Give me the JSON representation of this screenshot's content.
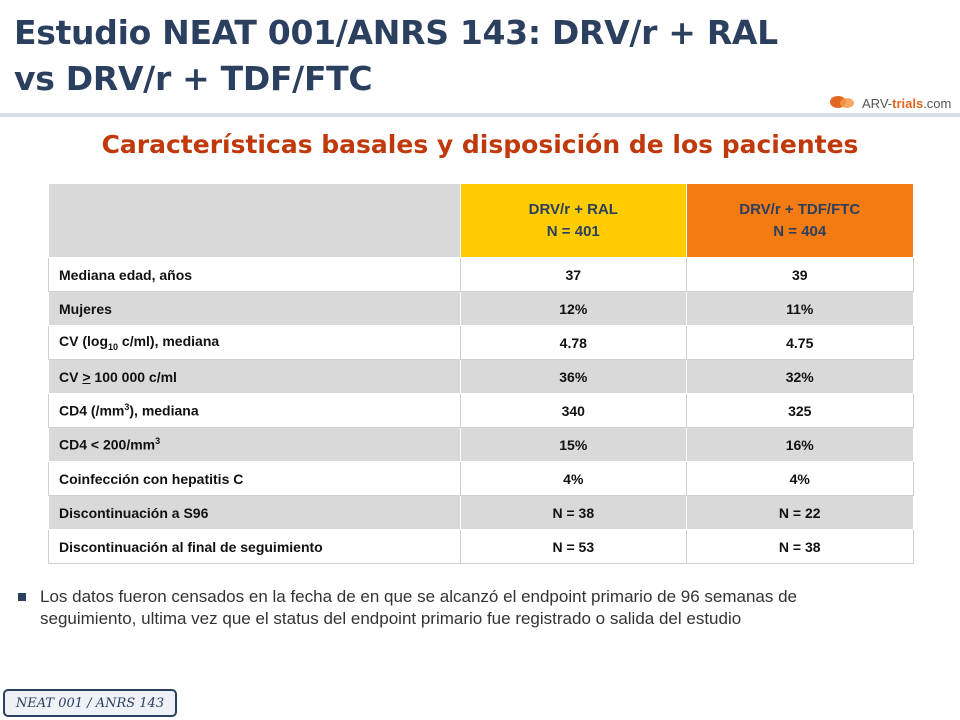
{
  "header": {
    "title": "Estudio NEAT 001/ANRS 143: DRV/r + RAL vs DRV/r + TDF/FTC",
    "subtitle": "Características basales y disposición de los pacientes",
    "logo_part1": "ARV-",
    "logo_part2": "trials",
    "logo_part3": ".com"
  },
  "table": {
    "colA_line1": "DRV/r + RAL",
    "colA_line2": "N = 401",
    "colB_line1": "DRV/r + TDF/FTC",
    "colB_line2": "N = 404",
    "rows": [
      {
        "label": "Mediana edad, años",
        "a": "37",
        "b": "39"
      },
      {
        "label": "Mujeres",
        "a": "12%",
        "b": "11%"
      },
      {
        "label_pre": "CV (log",
        "label_sub": "10",
        "label_post": " c/ml), mediana",
        "a": "4.78",
        "b": "4.75"
      },
      {
        "label_pre": "CV ",
        "label_u": ">",
        "label_post": " 100 000 c/ml",
        "a": "36%",
        "b": "32%"
      },
      {
        "label_pre": "CD4 (/mm",
        "label_sup": "3",
        "label_post": "), mediana",
        "a": "340",
        "b": "325"
      },
      {
        "label_pre": "CD4 < 200/mm",
        "label_sup": "3",
        "a": "15%",
        "b": "16%"
      },
      {
        "label": "Coinfección con hepatitis C",
        "a": "4%",
        "b": "4%"
      },
      {
        "label": "Discontinuación a S96",
        "a": "N = 38",
        "b": "N = 22"
      },
      {
        "label": "Discontinuación al final de seguimiento",
        "a": "N = 53",
        "b": "N = 38"
      }
    ]
  },
  "note": "Los datos fueron censados en la fecha de en que se alcanzó el endpoint primario de 96 semanas de seguimiento, ultima vez que el status del endpoint primario fue registrado o salida del estudio",
  "footer_tag": "NEAT 001 / ANRS 143",
  "colors": {
    "title": "#2b3f5f",
    "subtitle": "#c0390b",
    "colA": "#ffcc00",
    "colB": "#f47a12",
    "stripe": "#d9d9d9"
  }
}
